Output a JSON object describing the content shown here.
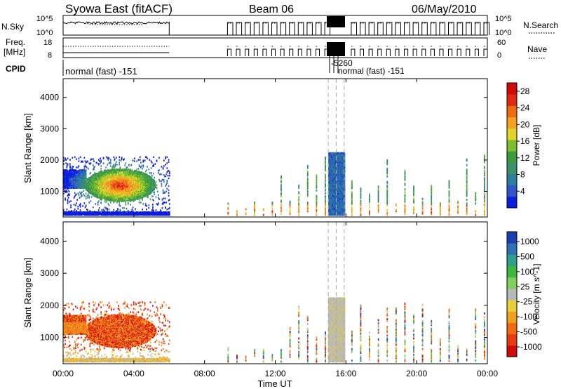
{
  "header": {
    "title": "Syowa East (fitACF)",
    "beam": "Beam 06",
    "date": "06/May/2010"
  },
  "nsky_panel": {
    "left_label": "N.Sky",
    "right_label": "N.Search",
    "left_ticks": [
      "10^5",
      "10^0"
    ],
    "right_ticks": [
      "10^5",
      "10^0"
    ]
  },
  "freq_panel": {
    "left_label_line1": "Freq.",
    "left_label_line2": "[MHz]",
    "right_label": "Nave",
    "left_ticks": [
      "18",
      "8"
    ],
    "right_ticks": [
      "60",
      "0"
    ]
  },
  "cpid_panel": {
    "label": "CPID",
    "mode_main": "normal (fast) -151",
    "mode_secondary": "-5260",
    "mode_overlap": "normal (fast) -151"
  },
  "x_axis": {
    "label": "Time UT",
    "ticks": [
      "00:00",
      "04:00",
      "08:00",
      "12:00",
      "16:00",
      "20:00",
      "00:00"
    ]
  },
  "chart_data": [
    {
      "type": "heatmap",
      "name": "power",
      "ylabel": "Slant Range [km]",
      "xlabel": "",
      "x_range_hours": [
        0,
        24
      ],
      "ylim": [
        180,
        4600
      ],
      "y_ticks": [
        "1000",
        "2000",
        "3000",
        "4000"
      ],
      "colorbar_label": "Power [dB]",
      "colorbar_ticks": [
        "4",
        "8",
        "12",
        "16",
        "20",
        "24",
        "28"
      ],
      "colorbar_range": [
        0,
        30
      ],
      "colors": [
        "#0a1fe0",
        "#2f55c9",
        "#2a7fa0",
        "#3d8f6a",
        "#3c9b3c",
        "#7bbf2a",
        "#e0d22a",
        "#f5a020",
        "#f06a14",
        "#e02a14",
        "#d20a0a"
      ],
      "features": [
        {
          "label": "early patch",
          "t0": 0.0,
          "t1": 6.0,
          "r0": 250,
          "r1": 2100,
          "value_range": [
            4,
            26
          ]
        },
        {
          "label": "dense band",
          "t0": 15.0,
          "t1": 15.9,
          "r0": 250,
          "r1": 2250,
          "value_range": [
            2,
            10
          ]
        },
        {
          "label": "periodic scans",
          "t0": 9.3,
          "t1": 23.8,
          "r0": 250,
          "r1": 2200,
          "value_range": [
            3,
            26
          ]
        }
      ]
    },
    {
      "type": "heatmap",
      "name": "velocity",
      "ylabel": "Slant Range [km]",
      "xlabel": "Time UT",
      "x_range_hours": [
        0,
        24
      ],
      "ylim": [
        180,
        4600
      ],
      "y_ticks": [
        "1000",
        "2000",
        "3000",
        "4000"
      ],
      "colorbar_label": "Velocity [m s^-1]",
      "colorbar_ticks": [
        "1000",
        "500",
        "100",
        "25",
        "-25",
        "-100",
        "-500",
        "-1000"
      ],
      "colors": [
        "#1a3fb0",
        "#2f6fb8",
        "#2f9e8a",
        "#3cb83c",
        "#7dd05a",
        "#b8b8b8",
        "#e8cf3a",
        "#f0a020",
        "#f06a14",
        "#e83a14",
        "#d20a0a"
      ],
      "features": [
        {
          "label": "early patch",
          "t0": 0.0,
          "t1": 6.0,
          "r0": 250,
          "r1": 2100,
          "velocity_sign": "negative"
        },
        {
          "label": "dense band",
          "t0": 15.0,
          "t1": 15.9,
          "r0": 250,
          "r1": 2250,
          "velocity_sign": "near zero"
        },
        {
          "label": "periodic scans",
          "t0": 9.3,
          "t1": 23.8,
          "r0": 250,
          "r1": 2200,
          "velocity_sign": "mixed"
        }
      ]
    }
  ]
}
